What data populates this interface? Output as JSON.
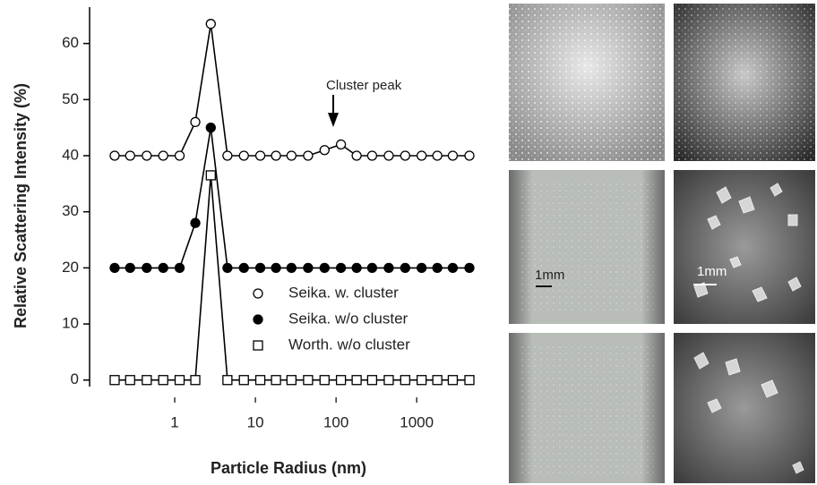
{
  "chart_data": {
    "type": "line",
    "x_label": "Particle Radius (nm)",
    "y_label": "Relative Scattering Intensity (%)",
    "annotation": "Cluster peak",
    "log_x": true,
    "x": [
      0.18,
      0.28,
      0.45,
      0.72,
      1.15,
      1.8,
      2.8,
      4.5,
      7.2,
      11.5,
      18,
      28,
      45,
      72,
      115,
      180,
      280,
      450,
      720,
      1150,
      1800,
      2800,
      4500
    ],
    "series": [
      {
        "name": "Seika. w. cluster",
        "color": "#000000",
        "marker": "open-circle",
        "values": [
          40,
          40,
          40,
          40,
          40,
          46,
          63.5,
          40,
          40,
          40,
          40,
          40,
          40,
          41,
          42,
          40,
          40,
          40,
          40,
          40,
          40,
          40,
          40
        ]
      },
      {
        "name": "Seika. w/o cluster",
        "color": "#000000",
        "marker": "filled-circle",
        "values": [
          20,
          20,
          20,
          20,
          20,
          28,
          45,
          20,
          20,
          20,
          20,
          20,
          20,
          20,
          20,
          20,
          20,
          20,
          20,
          20,
          20,
          20,
          20
        ]
      },
      {
        "name": "Worth. w/o  cluster",
        "color": "#000000",
        "marker": "open-square",
        "values": [
          0,
          0,
          0,
          0,
          0,
          0,
          36.5,
          0,
          0,
          0,
          0,
          0,
          0,
          0,
          0,
          0,
          0,
          0,
          0,
          0,
          0,
          0,
          0
        ]
      }
    ],
    "xlim": [
      0.088,
      7700
    ],
    "xticks": [
      1,
      10,
      100,
      1000
    ],
    "ylim": [
      -1,
      66
    ],
    "yticks": [
      0,
      10,
      20,
      30,
      40,
      50,
      60
    ]
  },
  "images": {
    "scale_labels": [
      "1mm",
      "1mm"
    ]
  }
}
